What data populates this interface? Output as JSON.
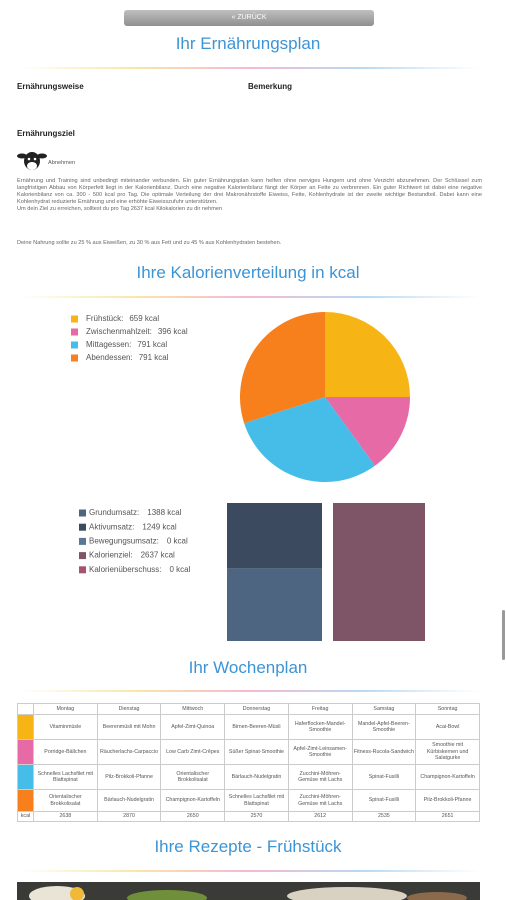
{
  "back_button": "« ZURÜCK",
  "plan": {
    "title": "Ihr Ernährungsplan",
    "diet_label": "Ernährungsweise",
    "remark_label": "Bemerkung",
    "goal_label": "Ernährungsziel",
    "goal": "Abnehmen",
    "text": "Ernährung und Training sind unbedingt miteinander verbunden. Ein guter Ernährungsplan kann helfen ohne nerviges Hungern und ohne Verzicht abzunehmen. Der Schlüssel zum langfristigen Abbau von Körperfett liegt in der Kalorienbilanz. Durch eine negative Kalorienbilanz fängt der Körper an Fette zu verbrennen. Ein guter Richtwert ist dabei eine negative Kalorienbilanz von ca. 300 - 500 kcal pro Tag. Die optimale Verteilung der drei Makronährstoffe Eiweiss, Fette, Kohlenhydrate ist der zweite wichtige Bestandteil. Dabei kann eine Kohlenhydrat reduzierte Ernährung und eine erhöhte Eiweisszufuhr unterstützen.",
    "target": "Um dein Ziel zu erreichen, solltest du pro Tag 2637 kcal Kilokalorien zu dir nehmen",
    "macros": "Deine Nahrung sollte zu 25 % aus Eiweißen, zu 30 % aus Fett und zu 45 % aus Kohlenhydraten bestehen."
  },
  "calories": {
    "title": "Ihre Kalorienverteilung in kcal",
    "pie": {
      "type": "pie",
      "categories": [
        "Frühstück:",
        "Zwischenmahlzeit:",
        "Mittagessen:",
        "Abendessen:"
      ],
      "values": [
        659,
        396,
        791,
        791
      ],
      "value_labels": [
        "659 kcal",
        "396 kcal",
        "791 kcal",
        "791 kcal"
      ],
      "colors": [
        "#f6b514",
        "#e56aa6",
        "#45bde8",
        "#f77f1c"
      ]
    },
    "bars": {
      "type": "bar",
      "stacked": true,
      "categories": [
        null,
        null
      ],
      "ylim": [
        0,
        2637
      ],
      "series": [
        {
          "name": "Grundumsatz:",
          "value_label": "1388 kcal",
          "color": "#4d6580",
          "values": [
            1388,
            null
          ]
        },
        {
          "name": "Aktivumsatz:",
          "value_label": "1249 kcal",
          "color": "#3c4a5f",
          "values": [
            1249,
            null
          ]
        },
        {
          "name": "Bewegungsumsatz:",
          "value_label": "0 kcal",
          "color": "#5a7797",
          "values": [
            0,
            null
          ]
        },
        {
          "name": "Kalorienziel:",
          "value_label": "2637 kcal",
          "color": "#7d5567",
          "values": [
            null,
            2637
          ]
        },
        {
          "name": "Kalorienüberschuss:",
          "value_label": "0 kcal",
          "color": "#a5546b",
          "values": [
            null,
            0
          ]
        }
      ]
    }
  },
  "week": {
    "title": "Ihr Wochenplan",
    "days": [
      "Montag",
      "Dienstag",
      "Mittwoch",
      "Donnerstag",
      "Freitag",
      "Samstag",
      "Sonntag"
    ],
    "rows": [
      [
        "Vitaminmüsle",
        "Beerenmüsli mit Mohn",
        "Apfel-Zimt-Quinoa",
        "Birnen-Beeren-Müsli",
        "Haferflocken-Mandel-Smoothie",
        "Mandel-Apfel-Beeren-Smoothie",
        "Acai-Bowl"
      ],
      [
        "Porridge-Bällchen",
        "Räucherlachs-Carpaccio",
        "Low Carb Zimt-Crêpes",
        "Süßer Spinat-Smoothie",
        "Apfel-Zimt-Leinsamen-Smoothie",
        "Fitness-Rucola-Sandwich",
        "Smoothie mit Kürbiskernen und Salatgurke"
      ],
      [
        "Schnelles Lachsfilet mit Blattspinat",
        "Pilz-Brokkoli-Pfanne",
        "Orientalischer Brokkolisalat",
        "Bärlauch-Nudelgratin",
        "Zucchini-Möhren-Gemüse mit Lachs",
        "Spinat-Fusilli",
        "Champignon-Kartoffeln"
      ],
      [
        "Orientalischer Brokkolisalat",
        "Bärlauch-Nudelgratin",
        "Champignon-Kartoffeln",
        "Schnelles Lachsfilet mit Blattspinat",
        "Zucchini-Möhren-Gemüse mit Lachs",
        "Spinat-Fusilli",
        "Pilz-Brokkoli-Pfanne"
      ]
    ],
    "kcal_label": "kcal",
    "kcal": [
      "2638",
      "2870",
      "2650",
      "2570",
      "2612",
      "2535",
      "2651"
    ]
  },
  "recipes": {
    "title": "Ihre Rezepte - Frühstück"
  }
}
